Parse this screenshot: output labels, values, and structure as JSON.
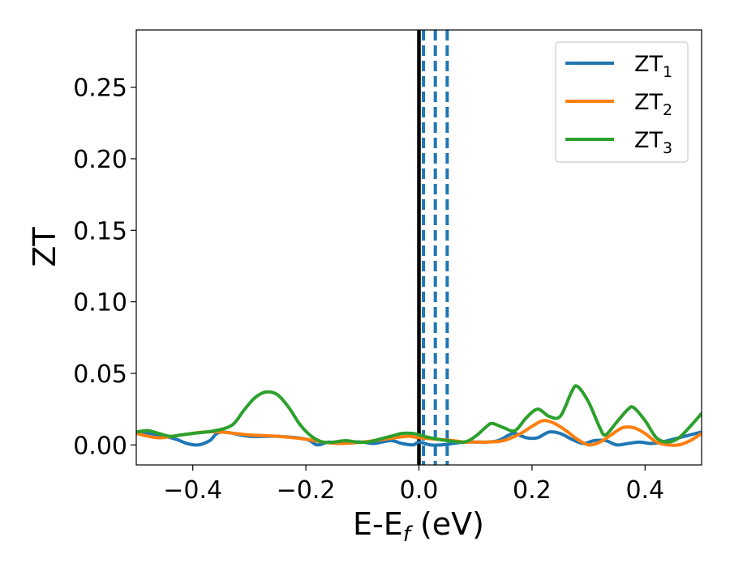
{
  "chart_data": {
    "type": "line",
    "title": "",
    "xlabel": {
      "main": "E-E",
      "sub": "f",
      "tail": " (eV)"
    },
    "ylabel": "ZT",
    "xlim": [
      -0.5,
      0.5
    ],
    "ylim": [
      -0.014,
      0.29
    ],
    "xticks": [
      -0.4,
      -0.2,
      0.0,
      0.2,
      0.4
    ],
    "xtick_labels": [
      "−0.4",
      "−0.2",
      "0.0",
      "0.2",
      "0.4"
    ],
    "yticks": [
      0.0,
      0.05,
      0.1,
      0.15,
      0.2,
      0.25
    ],
    "ytick_labels": [
      "0.00",
      "0.05",
      "0.10",
      "0.15",
      "0.20",
      "0.25"
    ],
    "grid": false,
    "legend_position": "top-right",
    "vertical_lines": [
      {
        "x": 0.0,
        "style": "solid",
        "color": "#000000"
      },
      {
        "x": 0.008,
        "style": "dashed",
        "color": "#1f77b4"
      },
      {
        "x": 0.029,
        "style": "dashed",
        "color": "#1f77b4"
      },
      {
        "x": 0.05,
        "style": "dashed",
        "color": "#1f77b4"
      }
    ],
    "series": [
      {
        "name": "ZT",
        "sub": "1",
        "color": "#1f77b4",
        "x": [
          -0.5,
          -0.46,
          -0.43,
          -0.41,
          -0.39,
          -0.37,
          -0.35,
          -0.3,
          -0.25,
          -0.2,
          -0.18,
          -0.16,
          -0.14,
          -0.12,
          -0.1,
          -0.08,
          -0.05,
          -0.03,
          -0.01,
          0.0,
          0.02,
          0.04,
          0.06,
          0.08,
          0.1,
          0.12,
          0.14,
          0.16,
          0.17,
          0.19,
          0.21,
          0.23,
          0.25,
          0.27,
          0.29,
          0.31,
          0.33,
          0.35,
          0.37,
          0.39,
          0.41,
          0.43,
          0.45,
          0.47,
          0.5
        ],
        "y": [
          0.009,
          0.007,
          0.004,
          0.001,
          0.0,
          0.003,
          0.009,
          0.006,
          0.006,
          0.004,
          0.0,
          0.002,
          0.001,
          0.002,
          0.002,
          0.001,
          0.003,
          0.001,
          0.0,
          0.002,
          0.0,
          0.0,
          0.001,
          0.002,
          0.002,
          0.002,
          0.003,
          0.007,
          0.008,
          0.005,
          0.005,
          0.009,
          0.008,
          0.004,
          0.001,
          0.003,
          0.003,
          0.0,
          0.001,
          0.002,
          0.001,
          0.002,
          0.004,
          0.006,
          0.009
        ]
      },
      {
        "name": "ZT",
        "sub": "2",
        "color": "#ff7f0e",
        "x": [
          -0.5,
          -0.46,
          -0.42,
          -0.38,
          -0.35,
          -0.3,
          -0.25,
          -0.2,
          -0.17,
          -0.14,
          -0.1,
          -0.06,
          -0.02,
          0.0,
          0.03,
          0.06,
          0.08,
          0.1,
          0.12,
          0.15,
          0.18,
          0.2,
          0.22,
          0.24,
          0.26,
          0.28,
          0.3,
          0.32,
          0.34,
          0.36,
          0.38,
          0.4,
          0.42,
          0.44,
          0.46,
          0.48,
          0.5
        ],
        "y": [
          0.008,
          0.005,
          0.007,
          0.009,
          0.009,
          0.007,
          0.006,
          0.004,
          0.002,
          0.001,
          0.002,
          0.004,
          0.006,
          0.005,
          0.004,
          0.003,
          0.002,
          0.002,
          0.002,
          0.003,
          0.008,
          0.013,
          0.017,
          0.015,
          0.01,
          0.004,
          0.0,
          0.002,
          0.007,
          0.012,
          0.012,
          0.008,
          0.002,
          0.0,
          0.0,
          0.003,
          0.008
        ]
      },
      {
        "name": "ZT",
        "sub": "3",
        "color": "#2ca02c",
        "x": [
          -0.5,
          -0.48,
          -0.46,
          -0.44,
          -0.42,
          -0.4,
          -0.36,
          -0.33,
          -0.31,
          -0.29,
          -0.27,
          -0.25,
          -0.23,
          -0.21,
          -0.19,
          -0.17,
          -0.15,
          -0.13,
          -0.11,
          -0.09,
          -0.07,
          -0.05,
          -0.03,
          -0.01,
          0.0,
          0.02,
          0.05,
          0.08,
          0.1,
          0.12,
          0.13,
          0.15,
          0.17,
          0.19,
          0.21,
          0.23,
          0.25,
          0.27,
          0.28,
          0.3,
          0.32,
          0.33,
          0.35,
          0.37,
          0.38,
          0.4,
          0.42,
          0.44,
          0.46,
          0.48,
          0.5
        ],
        "y": [
          0.009,
          0.01,
          0.008,
          0.006,
          0.007,
          0.008,
          0.01,
          0.014,
          0.024,
          0.033,
          0.037,
          0.035,
          0.026,
          0.014,
          0.006,
          0.002,
          0.002,
          0.003,
          0.002,
          0.002,
          0.004,
          0.006,
          0.008,
          0.008,
          0.007,
          0.005,
          0.003,
          0.002,
          0.006,
          0.013,
          0.015,
          0.012,
          0.01,
          0.019,
          0.025,
          0.02,
          0.02,
          0.037,
          0.041,
          0.03,
          0.012,
          0.007,
          0.016,
          0.025,
          0.026,
          0.017,
          0.005,
          0.002,
          0.005,
          0.013,
          0.022
        ]
      }
    ]
  }
}
